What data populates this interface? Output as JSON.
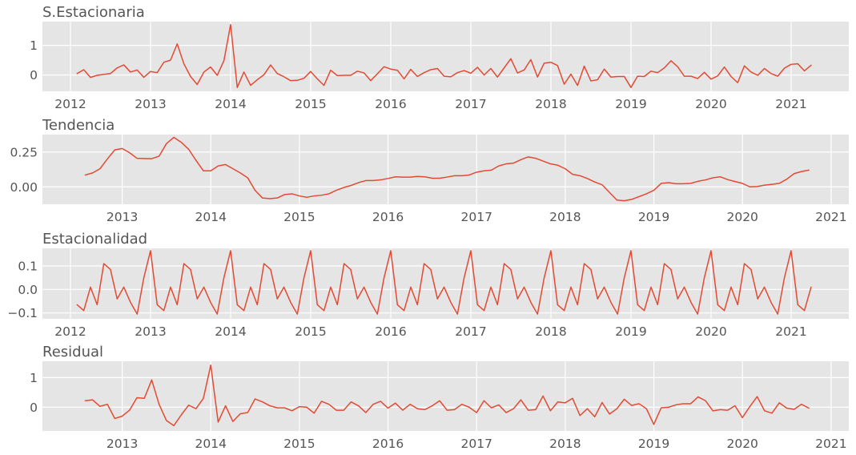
{
  "chart_data": [
    {
      "type": "line",
      "title": "S.Estacionaria",
      "xlabel": "",
      "ylabel": "",
      "x_start": 2012.083,
      "x_step": 0.08333,
      "xlim": [
        2011.65,
        2021.72
      ],
      "ylim": [
        -0.55,
        1.8
      ],
      "xticks": [
        2012,
        2013,
        2014,
        2015,
        2016,
        2017,
        2018,
        2019,
        2020,
        2021
      ],
      "yticks": [
        0,
        1
      ],
      "ytick_labels": [
        "0",
        "1"
      ],
      "grid": true,
      "color": "#E24A33",
      "values": [
        0.05,
        0.18,
        -0.08,
        -0.01,
        0.02,
        0.05,
        0.24,
        0.34,
        0.1,
        0.17,
        -0.08,
        0.12,
        0.08,
        0.43,
        0.5,
        1.05,
        0.38,
        -0.05,
        -0.32,
        0.1,
        0.27,
        -0.01,
        0.48,
        1.7,
        -0.42,
        0.1,
        -0.35,
        -0.16,
        0.01,
        0.34,
        0.05,
        -0.06,
        -0.19,
        -0.18,
        -0.11,
        0.12,
        -0.13,
        -0.35,
        0.16,
        -0.02,
        -0.01,
        -0.01,
        0.13,
        0.07,
        -0.19,
        0.04,
        0.28,
        0.2,
        0.16,
        -0.13,
        0.19,
        -0.05,
        0.08,
        0.18,
        0.22,
        -0.04,
        -0.06,
        0.08,
        0.15,
        0.06,
        0.26,
        0.0,
        0.22,
        -0.07,
        0.24,
        0.55,
        0.07,
        0.17,
        0.52,
        -0.07,
        0.4,
        0.43,
        0.32,
        -0.31,
        0.03,
        -0.35,
        0.3,
        -0.2,
        -0.16,
        0.2,
        -0.07,
        -0.05,
        -0.05,
        -0.42,
        -0.04,
        -0.05,
        0.13,
        0.08,
        0.24,
        0.48,
        0.28,
        -0.04,
        -0.04,
        -0.12,
        0.09,
        -0.14,
        -0.03,
        0.27,
        -0.05,
        -0.26,
        0.31,
        0.1,
        -0.01,
        0.22,
        0.05,
        -0.04,
        0.23,
        0.36,
        0.38,
        0.14,
        0.33
      ]
    },
    {
      "type": "line",
      "title": "Tendencia",
      "xlabel": "",
      "ylabel": "",
      "x_start": 2012.583,
      "x_step": 0.08333,
      "xlim": [
        2012.1,
        2021.2
      ],
      "ylim": [
        -0.125,
        0.375
      ],
      "xticks": [
        2013,
        2014,
        2015,
        2016,
        2017,
        2018,
        2019,
        2020,
        2021
      ],
      "yticks": [
        0,
        0.25
      ],
      "ytick_labels": [
        "0.00",
        "0.25"
      ],
      "grid": true,
      "color": "#E24A33",
      "values": [
        0.085,
        0.1,
        0.13,
        0.2,
        0.265,
        0.275,
        0.245,
        0.205,
        0.203,
        0.202,
        0.22,
        0.31,
        0.355,
        0.32,
        0.27,
        0.19,
        0.115,
        0.115,
        0.15,
        0.16,
        0.13,
        0.1,
        0.065,
        -0.025,
        -0.08,
        -0.085,
        -0.08,
        -0.055,
        -0.05,
        -0.065,
        -0.075,
        -0.065,
        -0.06,
        -0.05,
        -0.025,
        -0.005,
        0.01,
        0.03,
        0.045,
        0.045,
        0.05,
        0.06,
        0.072,
        0.07,
        0.07,
        0.075,
        0.072,
        0.062,
        0.062,
        0.07,
        0.08,
        0.08,
        0.085,
        0.105,
        0.115,
        0.12,
        0.15,
        0.165,
        0.17,
        0.195,
        0.215,
        0.205,
        0.185,
        0.165,
        0.155,
        0.13,
        0.09,
        0.08,
        0.06,
        0.035,
        0.015,
        -0.04,
        -0.095,
        -0.1,
        -0.09,
        -0.07,
        -0.05,
        -0.025,
        0.025,
        0.03,
        0.022,
        0.022,
        0.025,
        0.04,
        0.05,
        0.065,
        0.072,
        0.052,
        0.038,
        0.025,
        0.0,
        0.002,
        0.012,
        0.018,
        0.025,
        0.055,
        0.095,
        0.11,
        0.12
      ]
    },
    {
      "type": "line",
      "title": "Estacionalidad",
      "xlabel": "",
      "ylabel": "",
      "x_start": 2012.083,
      "x_step": 0.08333,
      "xlim": [
        2011.65,
        2021.72
      ],
      "ylim": [
        -0.125,
        0.175
      ],
      "xticks": [
        2012,
        2013,
        2014,
        2015,
        2016,
        2017,
        2018,
        2019,
        2020,
        2021
      ],
      "yticks": [
        -0.1,
        0,
        0.1
      ],
      "ytick_labels": [
        "−0.1",
        "0.0",
        "0.1"
      ],
      "grid": true,
      "color": "#E24A33",
      "season": [
        -0.065,
        -0.09,
        0.01,
        -0.065,
        0.11,
        0.085,
        -0.04,
        0.01,
        -0.055,
        -0.105,
        0.05,
        0.165
      ],
      "n_points": 111
    },
    {
      "type": "line",
      "title": "Residual",
      "xlabel": "",
      "ylabel": "",
      "x_start": 2012.583,
      "x_step": 0.08333,
      "xlim": [
        2012.1,
        2021.2
      ],
      "ylim": [
        -0.8,
        1.55
      ],
      "xticks": [
        2013,
        2014,
        2015,
        2016,
        2017,
        2018,
        2019,
        2020,
        2021
      ],
      "yticks": [
        0,
        1
      ],
      "ytick_labels": [
        "0",
        "1"
      ],
      "grid": true,
      "color": "#E24A33",
      "values": [
        0.22,
        0.25,
        0.03,
        0.1,
        -0.38,
        -0.3,
        -0.1,
        0.32,
        0.3,
        0.92,
        0.1,
        -0.45,
        -0.62,
        -0.26,
        0.07,
        -0.05,
        0.3,
        1.42,
        -0.5,
        0.05,
        -0.48,
        -0.22,
        -0.18,
        0.28,
        0.18,
        0.05,
        -0.02,
        -0.02,
        -0.12,
        0.02,
        0.0,
        -0.2,
        0.2,
        0.1,
        -0.1,
        -0.1,
        0.18,
        0.05,
        -0.18,
        0.1,
        0.2,
        -0.03,
        0.14,
        -0.1,
        0.1,
        -0.05,
        -0.08,
        0.05,
        0.22,
        -0.1,
        -0.08,
        0.1,
        0.0,
        -0.18,
        0.22,
        -0.02,
        0.08,
        -0.18,
        -0.05,
        0.25,
        -0.1,
        -0.08,
        0.38,
        -0.12,
        0.18,
        0.15,
        0.3,
        -0.28,
        -0.05,
        -0.32,
        0.16,
        -0.23,
        -0.05,
        0.27,
        0.06,
        0.12,
        -0.05,
        -0.58,
        -0.02,
        -0.0,
        0.08,
        0.12,
        0.12,
        0.35,
        0.22,
        -0.12,
        -0.08,
        -0.1,
        0.05,
        -0.35,
        0.02,
        0.36,
        -0.12,
        -0.2,
        0.15,
        -0.03,
        -0.07,
        0.1,
        -0.03
      ]
    }
  ]
}
